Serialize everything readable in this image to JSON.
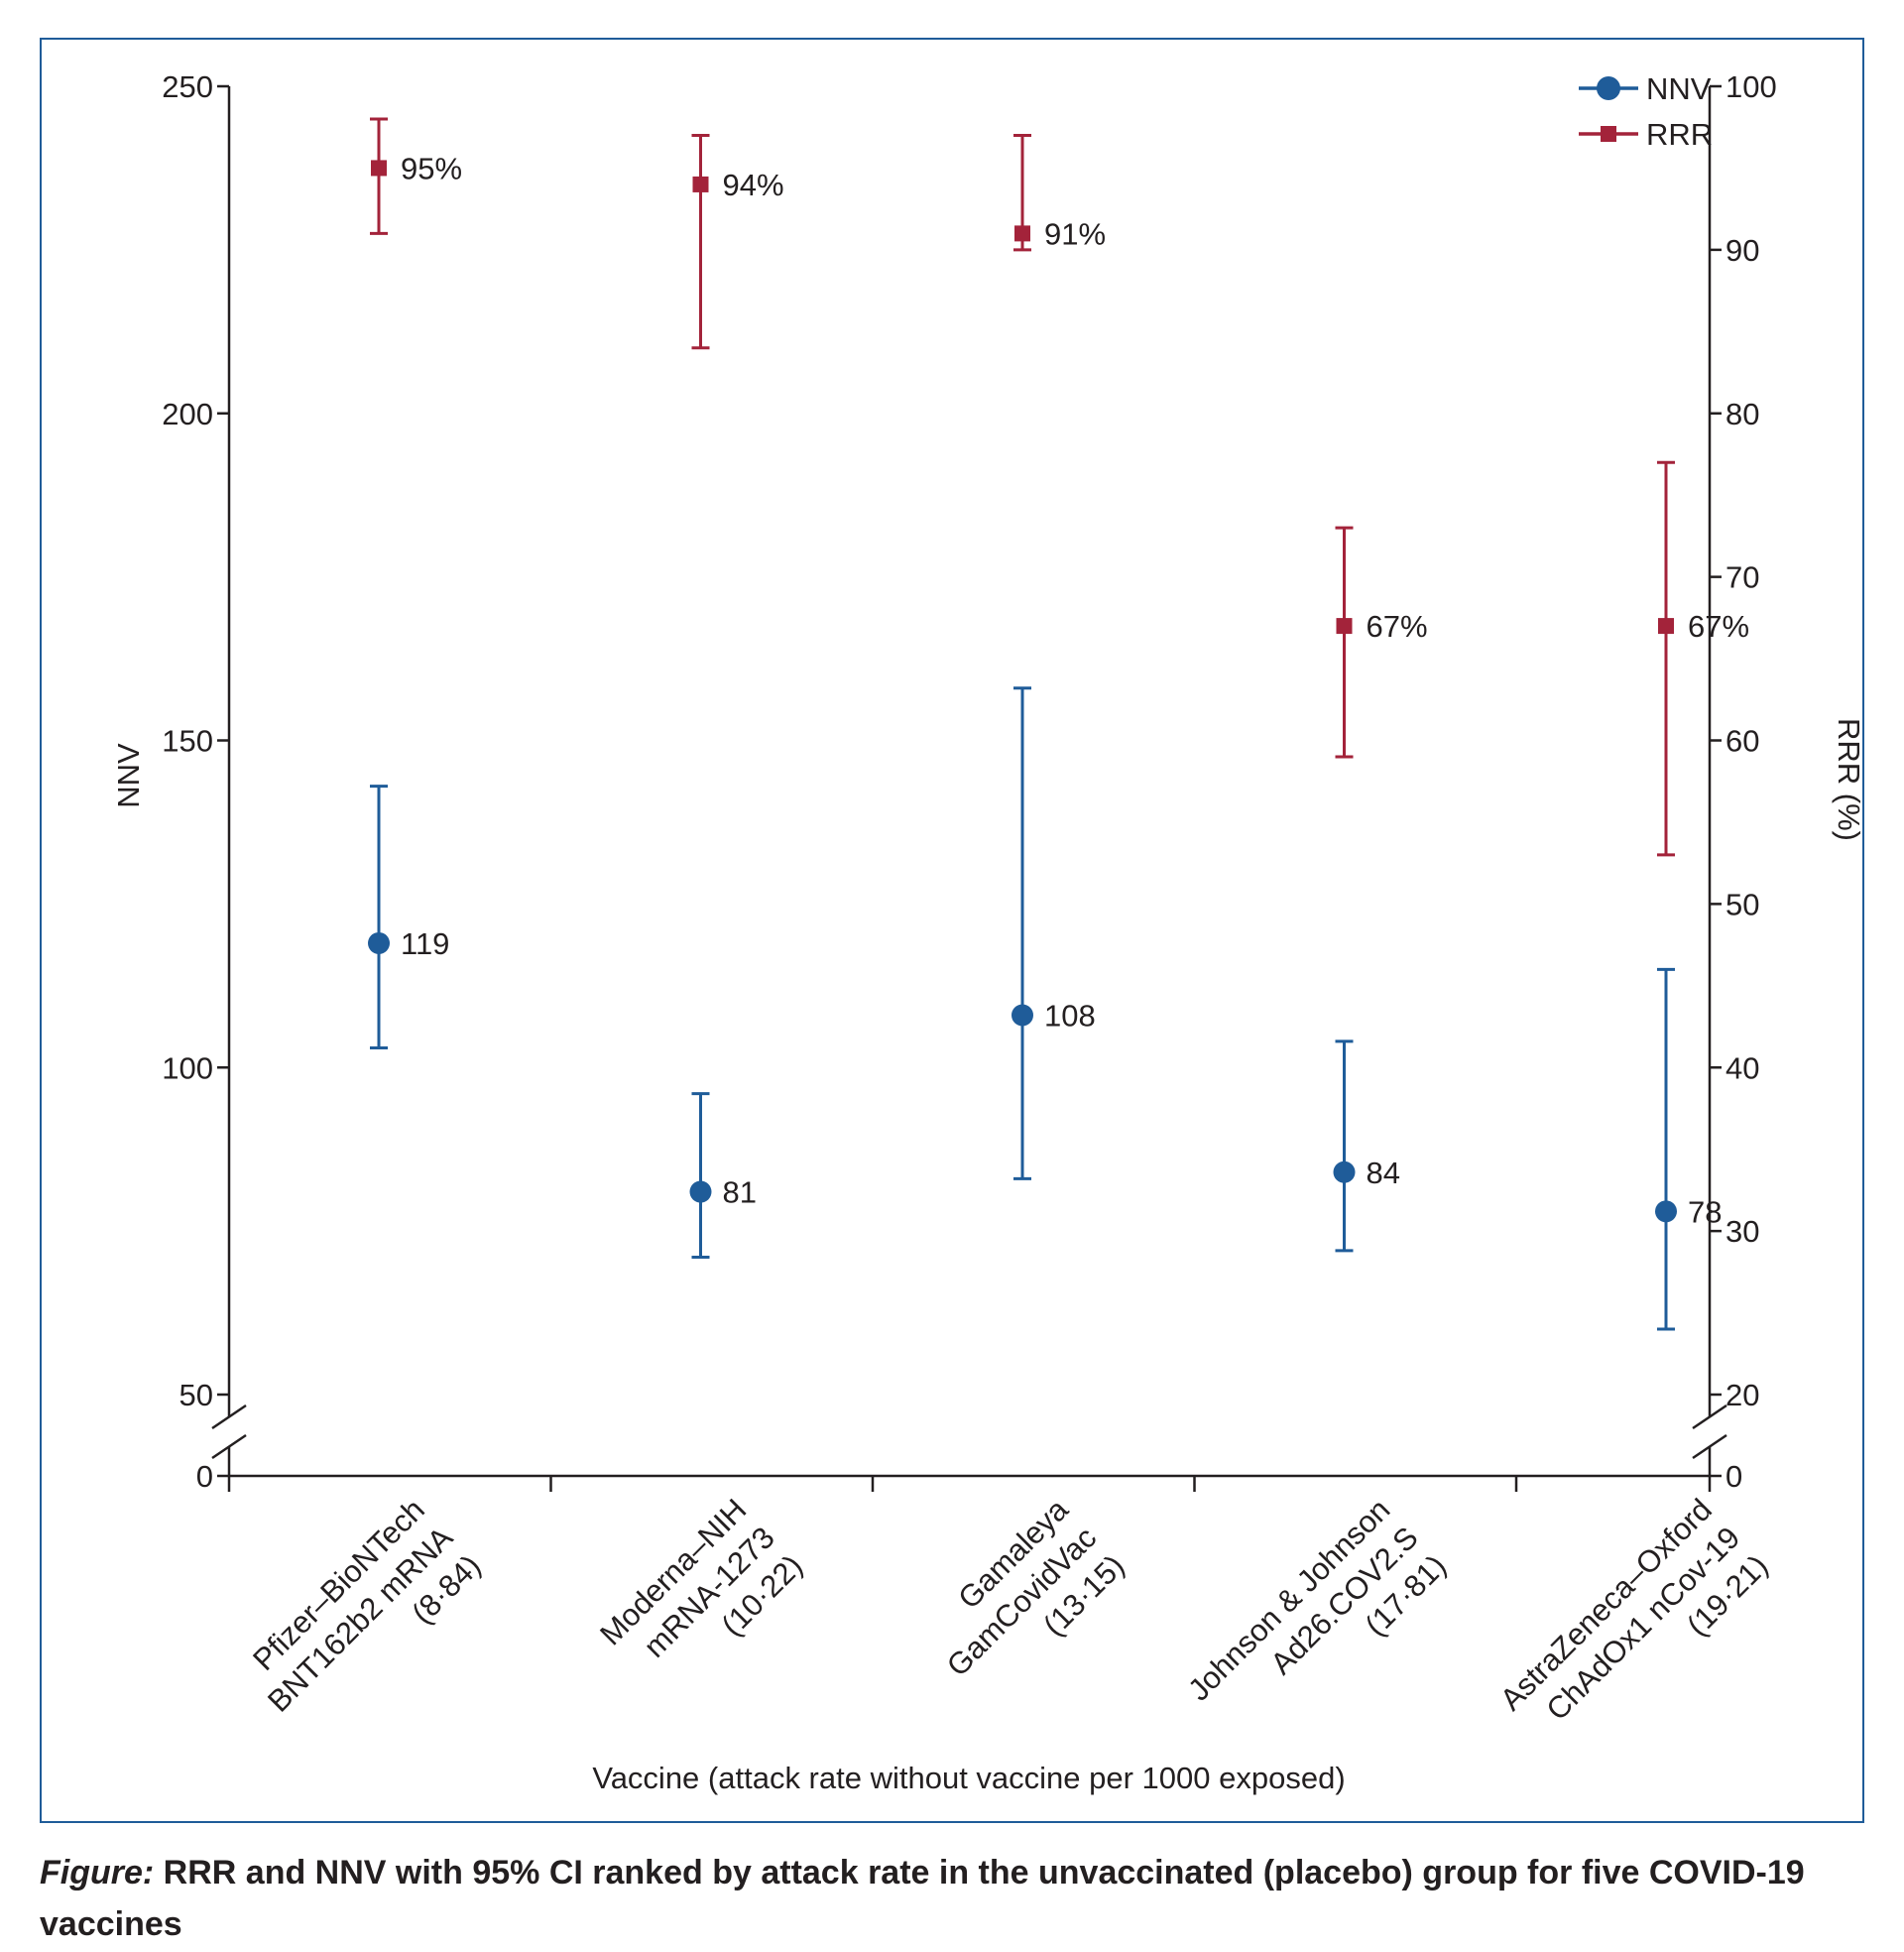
{
  "caption": {
    "lead": "Figure:",
    "text": "RRR and NNV with 95% CI ranked by attack rate in the unvaccinated (placebo) group for five COVID-19 vaccines"
  },
  "colors": {
    "nnv": "#1f5c99",
    "rrr": "#a3233a",
    "frame": "#1f5c99",
    "axis": "#231f20"
  },
  "chart_data": {
    "type": "scatter",
    "xlabel": "Vaccine (attack rate without vaccine per 1000 exposed)",
    "ylabel_left": "NNV",
    "ylabel_right": "RRR (%)",
    "ylim_left": [
      0,
      250
    ],
    "yticks_left": [
      0,
      50,
      100,
      150,
      200,
      250
    ],
    "ylim_right": [
      0,
      100
    ],
    "yticks_right": [
      0,
      20,
      30,
      40,
      50,
      60,
      70,
      80,
      90,
      100
    ],
    "axis_break": true,
    "legend": [
      "NNV",
      "RRR"
    ],
    "legend_position": "top-right",
    "categories": [
      [
        "Pfizer–BioNTech",
        "BNT162b2 mRNA",
        "(8·84)"
      ],
      [
        "Moderna–NIH",
        "mRNA-1273",
        "(10·22)"
      ],
      [
        "Gamaleya",
        "GamCovidVac",
        "(13·15)"
      ],
      [
        "Johnson & Johnson",
        "Ad26.COV2.S",
        "(17·81)"
      ],
      [
        "AstraZeneca–Oxford",
        "ChAdOx1 nCov-19",
        "(19·21)"
      ]
    ],
    "series": [
      {
        "name": "NNV",
        "axis": "left",
        "values": [
          119,
          81,
          108,
          84,
          78
        ],
        "ci_low": [
          103,
          71,
          83,
          72,
          60
        ],
        "ci_high": [
          143,
          96,
          158,
          104,
          115
        ],
        "labels": [
          "119",
          "81",
          "108",
          "84",
          "78"
        ]
      },
      {
        "name": "RRR",
        "axis": "right",
        "values": [
          95,
          94,
          91,
          67,
          67
        ],
        "ci_low": [
          91,
          84,
          90,
          59,
          53
        ],
        "ci_high": [
          98,
          97,
          97,
          73,
          77
        ],
        "labels": [
          "95%",
          "94%",
          "91%",
          "67%",
          "67%"
        ]
      }
    ]
  }
}
